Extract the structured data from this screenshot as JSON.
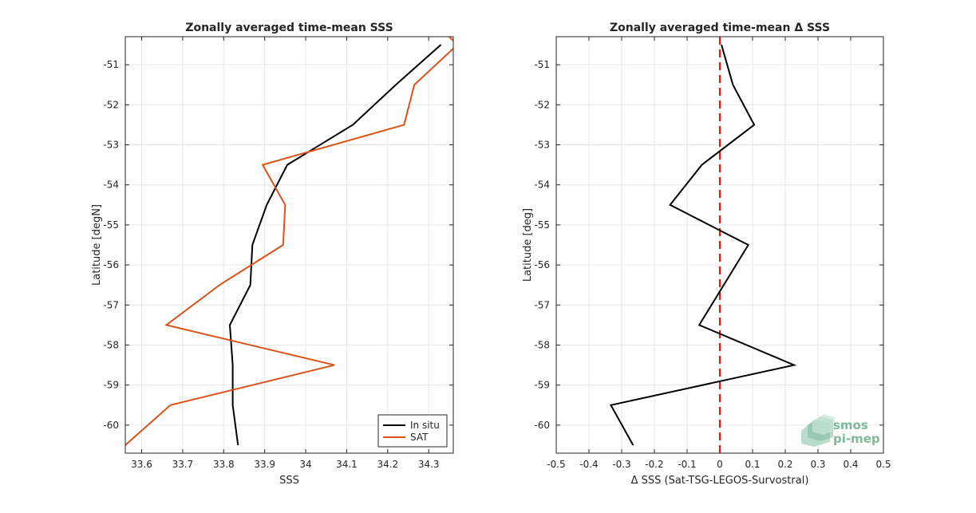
{
  "colors": {
    "in_situ": "#000000",
    "sat": "#d95319",
    "zero_line": "#e41a1c",
    "grid": "#e6e6e6",
    "axis": "#262626",
    "logo": "#7fb89a"
  },
  "logo": {
    "line1": "smos",
    "line2": "pi-mep"
  },
  "chart_data": [
    {
      "type": "line",
      "title": "Zonally averaged time-mean SSS",
      "xlabel": "SSS",
      "ylabel": "Latitude [degN]",
      "xlim": [
        33.56,
        34.36
      ],
      "ylim": [
        -60.7,
        -50.3
      ],
      "xticks": [
        "33.6",
        "33.7",
        "33.8",
        "33.9",
        "34",
        "34.1",
        "34.2",
        "34.3"
      ],
      "yticks": [
        "-51",
        "-52",
        "-53",
        "-54",
        "-55",
        "-56",
        "-57",
        "-58",
        "-59",
        "-60"
      ],
      "grid": true,
      "legend": "bottom-right",
      "series": [
        {
          "name": "In situ",
          "color_key": "in_situ",
          "x": [
            34.33,
            34.22,
            34.115,
            33.955,
            33.905,
            33.87,
            33.865,
            33.815,
            33.822,
            33.822,
            33.835
          ],
          "y": [
            -50.5,
            -51.5,
            -52.5,
            -53.5,
            -54.5,
            -55.5,
            -56.5,
            -57.5,
            -58.5,
            -59.5,
            -60.5
          ]
        },
        {
          "name": "SAT",
          "color_key": "sat",
          "x": [
            34.35,
            34.37,
            34.265,
            34.24,
            33.895,
            33.95,
            33.945,
            33.79,
            33.66,
            34.07,
            33.67,
            33.56
          ],
          "y": [
            -50.3,
            -50.5,
            -51.5,
            -52.5,
            -53.5,
            -54.5,
            -55.5,
            -56.5,
            -57.5,
            -58.5,
            -59.5,
            -60.5
          ]
        }
      ]
    },
    {
      "type": "line",
      "title": "Zonally averaged time-mean Δ SSS",
      "xlabel": "Δ SSS (Sat-TSG-LEGOS-Survostral)",
      "ylabel": "Latitude [deg]",
      "xlim": [
        -0.5,
        0.5
      ],
      "ylim": [
        -60.7,
        -50.3
      ],
      "xticks": [
        "-0.5",
        "-0.4",
        "-0.3",
        "-0.2",
        "-0.1",
        "0",
        "0.1",
        "0.2",
        "0.3",
        "0.4",
        "0.5"
      ],
      "yticks": [
        "-51",
        "-52",
        "-53",
        "-54",
        "-55",
        "-56",
        "-57",
        "-58",
        "-59",
        "-60"
      ],
      "grid": true,
      "series": [
        {
          "color_key": "in_situ",
          "x": [
            0.005,
            0.04,
            0.105,
            -0.055,
            -0.152,
            0.087,
            -0.063,
            0.227,
            -0.333,
            -0.265
          ],
          "y": [
            -50.5,
            -51.5,
            -52.5,
            -53.5,
            -54.5,
            -55.5,
            -57.5,
            -58.5,
            -59.5,
            -60.5
          ]
        }
      ],
      "reference_line": {
        "x": 0,
        "style": "dashed",
        "color_key": "zero_line"
      }
    }
  ]
}
